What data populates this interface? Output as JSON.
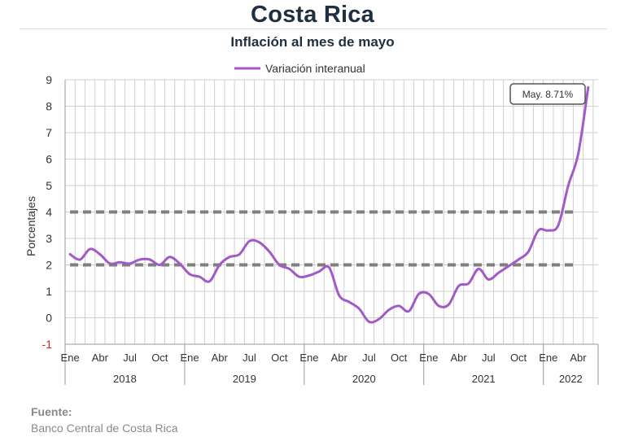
{
  "header": {
    "title": "Costa Rica",
    "subtitle": "Inflación al mes de mayo"
  },
  "source": {
    "label": "Fuente:",
    "text": "Banco Central de Costa Rica"
  },
  "colors": {
    "series": "#a25ac6",
    "bands": "#7f7f7f",
    "grid": "#cfcfcf",
    "axis_text": "#333333",
    "negative_tick": "#e02020"
  },
  "chart_data": {
    "type": "line",
    "title": "Inflación al mes de mayo",
    "ylabel": "Porcentajes",
    "ylim": [
      -1,
      9
    ],
    "yticks": [
      -1,
      0,
      1,
      2,
      3,
      4,
      5,
      6,
      7,
      8,
      9
    ],
    "grid": true,
    "legend_position": "top-center",
    "x_month_labels": [
      "Ene",
      "Abr",
      "Jul",
      "Oct"
    ],
    "years": [
      "2018",
      "2019",
      "2020",
      "2021",
      "2022"
    ],
    "reference_lines": [
      {
        "value": 2,
        "style": "dashed"
      },
      {
        "value": 4,
        "style": "dashed"
      }
    ],
    "annotation": {
      "text": "May. 8.71%",
      "x": "2022-05",
      "y": 8.71
    },
    "series": [
      {
        "name": "Variación interanual",
        "x": [
          "2018-01",
          "2018-02",
          "2018-03",
          "2018-04",
          "2018-05",
          "2018-06",
          "2018-07",
          "2018-08",
          "2018-09",
          "2018-10",
          "2018-11",
          "2018-12",
          "2019-01",
          "2019-02",
          "2019-03",
          "2019-04",
          "2019-05",
          "2019-06",
          "2019-07",
          "2019-08",
          "2019-09",
          "2019-10",
          "2019-11",
          "2019-12",
          "2020-01",
          "2020-02",
          "2020-03",
          "2020-04",
          "2020-05",
          "2020-06",
          "2020-07",
          "2020-08",
          "2020-09",
          "2020-10",
          "2020-11",
          "2020-12",
          "2021-01",
          "2021-02",
          "2021-03",
          "2021-04",
          "2021-05",
          "2021-06",
          "2021-07",
          "2021-08",
          "2021-09",
          "2021-10",
          "2021-11",
          "2021-12",
          "2022-01",
          "2022-02",
          "2022-03",
          "2022-04",
          "2022-05"
        ],
        "values": [
          2.4,
          2.2,
          2.6,
          2.4,
          2.05,
          2.1,
          2.05,
          2.2,
          2.2,
          2.0,
          2.3,
          2.05,
          1.65,
          1.55,
          1.38,
          2.0,
          2.3,
          2.4,
          2.9,
          2.85,
          2.5,
          2.0,
          1.85,
          1.55,
          1.6,
          1.75,
          1.9,
          0.85,
          0.6,
          0.35,
          -0.15,
          -0.05,
          0.3,
          0.45,
          0.25,
          0.9,
          0.9,
          0.45,
          0.5,
          1.2,
          1.3,
          1.85,
          1.45,
          1.7,
          1.95,
          2.2,
          2.5,
          3.3,
          3.3,
          3.5,
          5.0,
          6.2,
          8.71
        ]
      }
    ]
  }
}
